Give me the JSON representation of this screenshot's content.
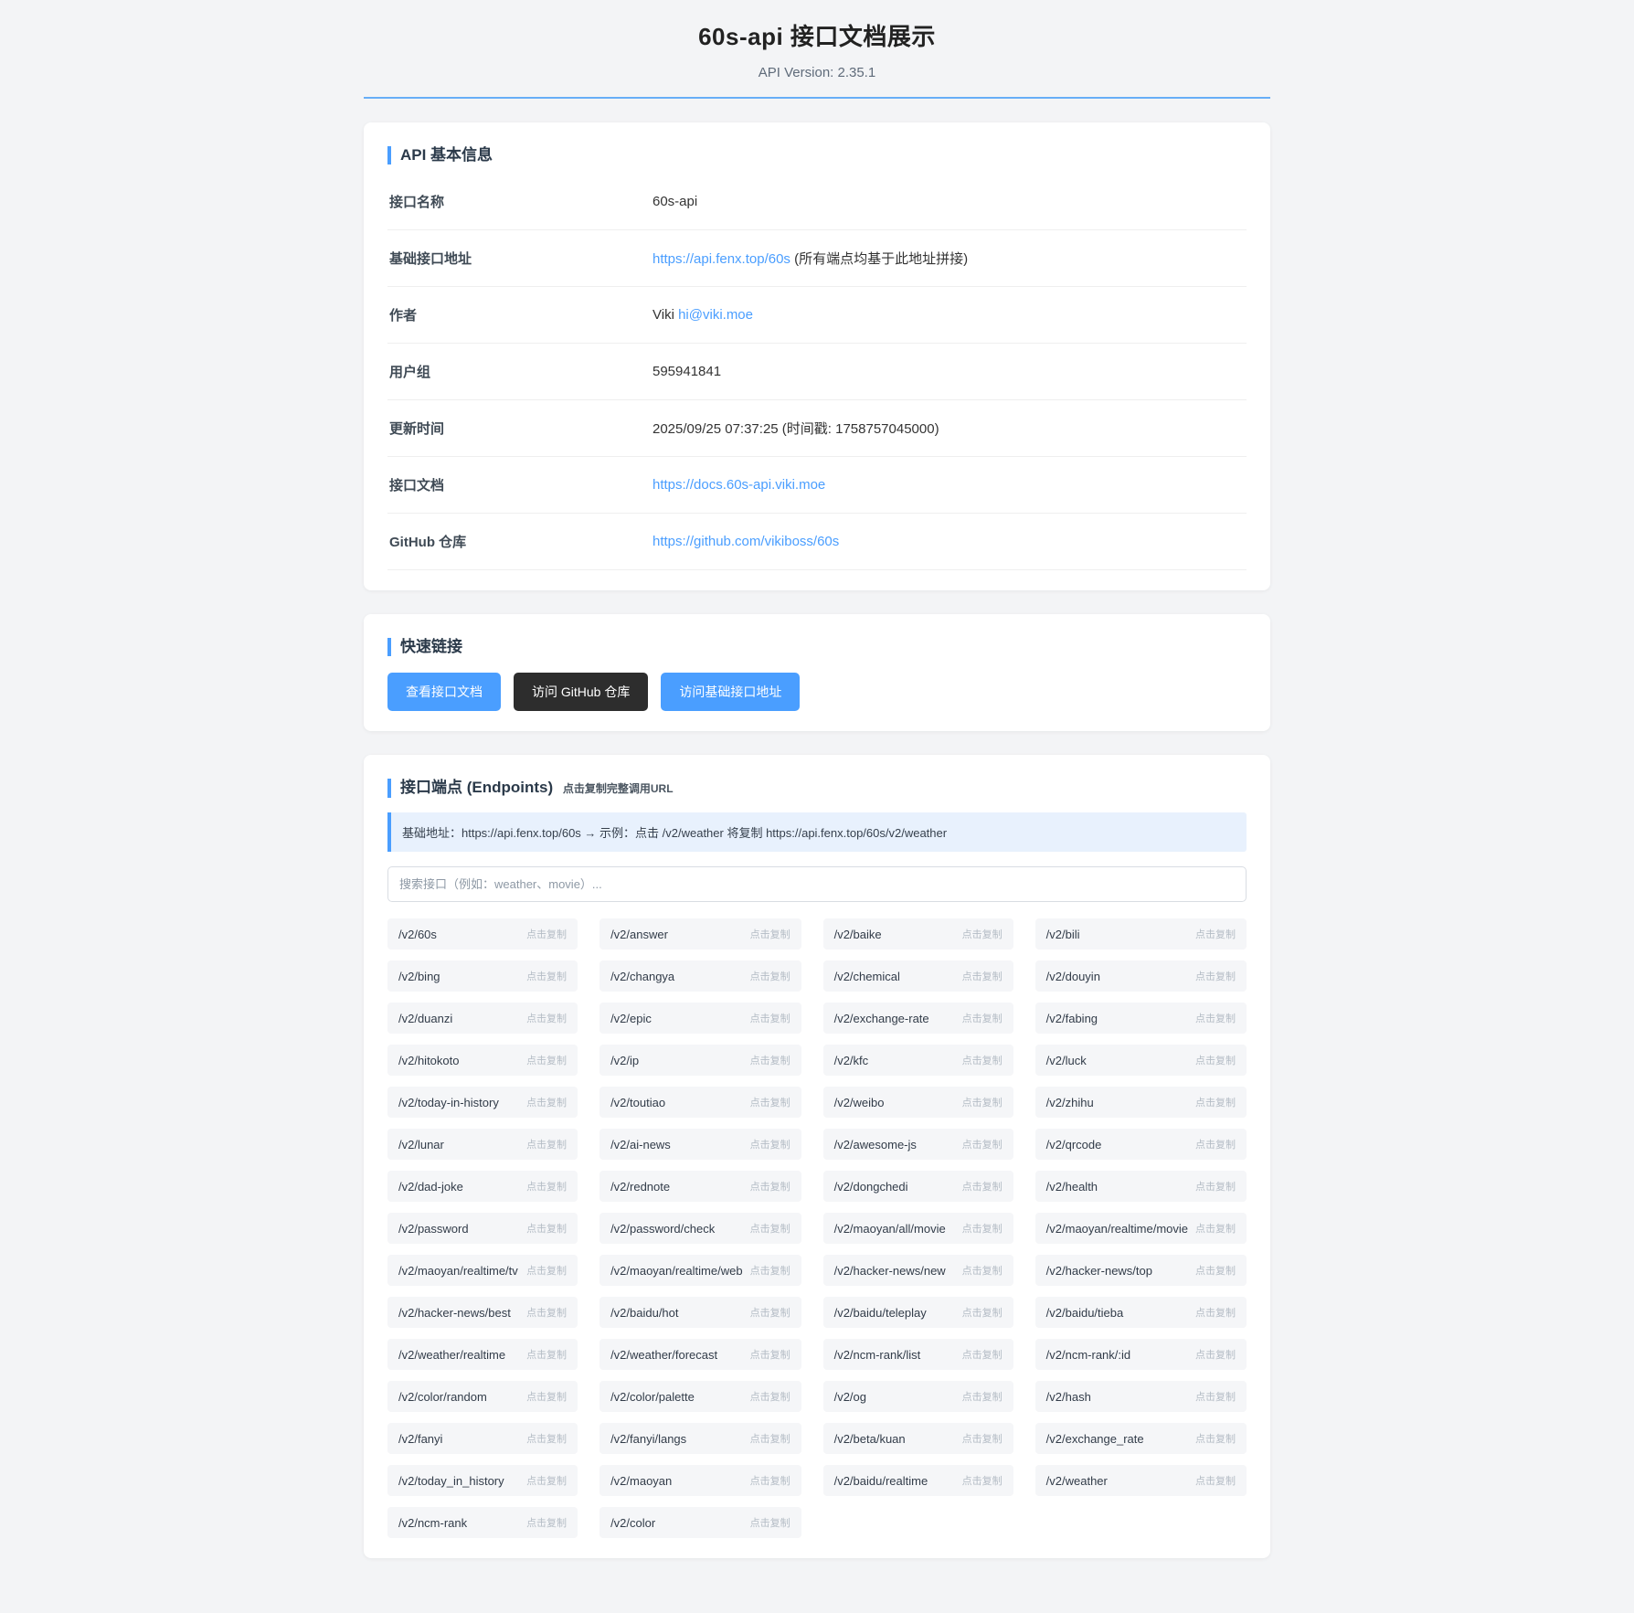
{
  "header": {
    "title": "60s-api 接口文档展示",
    "subtitle": "API Version: 2.35.1"
  },
  "colors": {
    "accent_blue": "#4a9eff",
    "dark_button": "#2d2d2d",
    "info_bar_bg": "#e8f1fd",
    "cell_bg": "#f5f6f8"
  },
  "info_card": {
    "title": "API 基本信息",
    "rows": [
      {
        "label": "接口名称",
        "prefix": "",
        "link": "",
        "suffix": "",
        "text": "60s-api"
      },
      {
        "label": "基础接口地址",
        "prefix": "",
        "link": "https://api.fenx.top/60s",
        "suffix": " (所有端点均基于此地址拼接)",
        "text": ""
      },
      {
        "label": "作者",
        "prefix": "Viki ",
        "link": "hi@viki.moe",
        "suffix": "",
        "text": ""
      },
      {
        "label": "用户组",
        "prefix": "",
        "link": "",
        "suffix": "",
        "text": "595941841"
      },
      {
        "label": "更新时间",
        "prefix": "",
        "link": "",
        "suffix": "",
        "text": "2025/09/25 07:37:25 (时间戳: 1758757045000)"
      },
      {
        "label": "接口文档",
        "prefix": "",
        "link": "https://docs.60s-api.viki.moe",
        "suffix": "",
        "text": ""
      },
      {
        "label": "GitHub 仓库",
        "prefix": "",
        "link": "https://github.com/vikiboss/60s",
        "suffix": "",
        "text": ""
      }
    ]
  },
  "quick_links_card": {
    "title": "快速链接",
    "buttons": [
      {
        "label": "查看接口文档",
        "style": "primary"
      },
      {
        "label": "访问 GitHub 仓库",
        "style": "dark"
      },
      {
        "label": "访问基础接口地址",
        "style": "primary"
      }
    ]
  },
  "endpoints_card": {
    "title": "接口端点 (Endpoints)",
    "title_hint": "点击复制完整调用URL",
    "info_bar": "基础地址：https://api.fenx.top/60s → 示例：点击 /v2/weather 将复制 https://api.fenx.top/60s/v2/weather",
    "search_placeholder": "搜索接口（例如：weather、movie）...",
    "copy_label": "点击复制",
    "endpoints": [
      "/v2/60s",
      "/v2/answer",
      "/v2/baike",
      "/v2/bili",
      "/v2/bing",
      "/v2/changya",
      "/v2/chemical",
      "/v2/douyin",
      "/v2/duanzi",
      "/v2/epic",
      "/v2/exchange-rate",
      "/v2/fabing",
      "/v2/hitokoto",
      "/v2/ip",
      "/v2/kfc",
      "/v2/luck",
      "/v2/today-in-history",
      "/v2/toutiao",
      "/v2/weibo",
      "/v2/zhihu",
      "/v2/lunar",
      "/v2/ai-news",
      "/v2/awesome-js",
      "/v2/qrcode",
      "/v2/dad-joke",
      "/v2/rednote",
      "/v2/dongchedi",
      "/v2/health",
      "/v2/password",
      "/v2/password/check",
      "/v2/maoyan/all/movie",
      "/v2/maoyan/realtime/movie",
      "/v2/maoyan/realtime/tv",
      "/v2/maoyan/realtime/web",
      "/v2/hacker-news/new",
      "/v2/hacker-news/top",
      "/v2/hacker-news/best",
      "/v2/baidu/hot",
      "/v2/baidu/teleplay",
      "/v2/baidu/tieba",
      "/v2/weather/realtime",
      "/v2/weather/forecast",
      "/v2/ncm-rank/list",
      "/v2/ncm-rank/:id",
      "/v2/color/random",
      "/v2/color/palette",
      "/v2/og",
      "/v2/hash",
      "/v2/fanyi",
      "/v2/fanyi/langs",
      "/v2/beta/kuan",
      "/v2/exchange_rate",
      "/v2/today_in_history",
      "/v2/maoyan",
      "/v2/baidu/realtime",
      "/v2/weather",
      "/v2/ncm-rank",
      "/v2/color"
    ]
  }
}
